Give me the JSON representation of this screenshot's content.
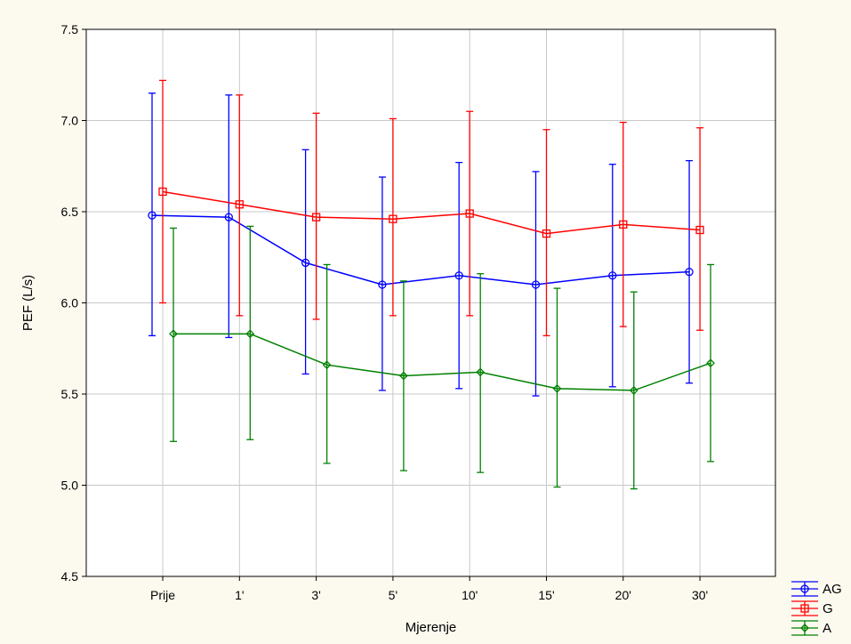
{
  "chart_data": {
    "type": "line",
    "title": "",
    "xlabel": "Mjerenje",
    "ylabel": "PEF (L/s)",
    "categories": [
      "Prije",
      "1'",
      "3'",
      "5'",
      "10'",
      "15'",
      "20'",
      "30'"
    ],
    "ylim": [
      4.5,
      7.5
    ],
    "yticks": [
      "4.5",
      "5.0",
      "5.5",
      "6.0",
      "6.5",
      "7.0",
      "7.5"
    ],
    "grid": true,
    "legend_position": "bottom-right",
    "series": [
      {
        "name": "AG",
        "color": "#0000FF",
        "marker": "circle",
        "values": [
          6.48,
          6.47,
          6.22,
          6.1,
          6.15,
          6.1,
          6.15,
          6.17
        ],
        "upper": [
          7.15,
          7.14,
          6.84,
          6.69,
          6.77,
          6.72,
          6.76,
          6.78
        ],
        "lower": [
          5.82,
          5.81,
          5.61,
          5.52,
          5.53,
          5.49,
          5.54,
          5.56
        ]
      },
      {
        "name": "G",
        "color": "#FF0000",
        "marker": "square",
        "values": [
          6.61,
          6.54,
          6.47,
          6.46,
          6.49,
          6.38,
          6.43,
          6.4
        ],
        "upper": [
          7.22,
          7.14,
          7.04,
          7.01,
          7.05,
          6.95,
          6.99,
          6.96
        ],
        "lower": [
          6.0,
          5.93,
          5.91,
          5.93,
          5.93,
          5.82,
          5.87,
          5.85
        ]
      },
      {
        "name": "A",
        "color": "#008000",
        "marker": "diamond",
        "values": [
          5.83,
          5.83,
          5.66,
          5.6,
          5.62,
          5.53,
          5.52,
          5.67
        ],
        "upper": [
          6.41,
          6.42,
          6.21,
          6.12,
          6.16,
          6.08,
          6.06,
          6.21
        ],
        "lower": [
          5.24,
          5.25,
          5.12,
          5.08,
          5.07,
          4.99,
          4.98,
          5.13
        ]
      }
    ]
  }
}
